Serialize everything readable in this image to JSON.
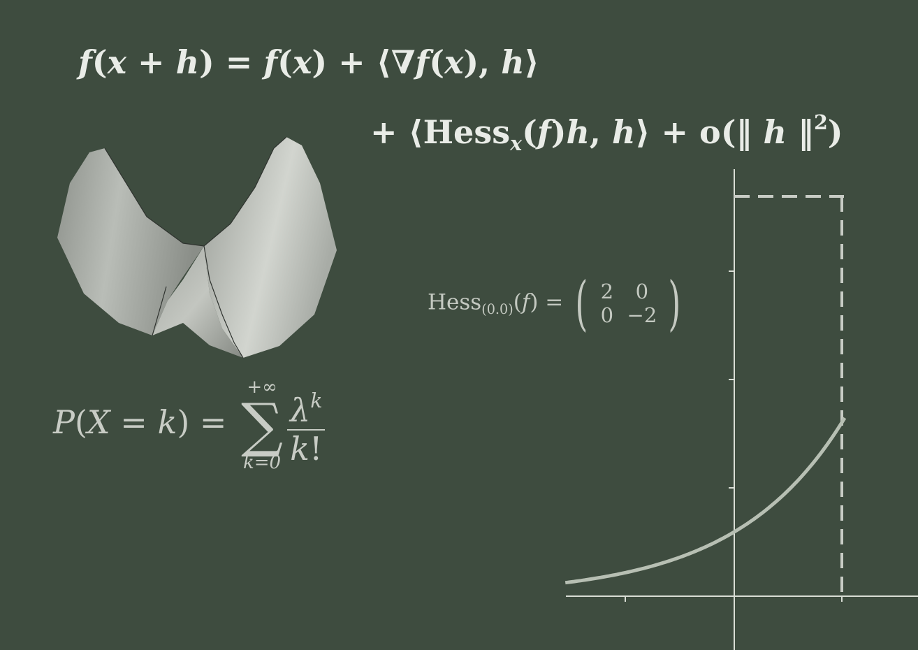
{
  "formulas": {
    "taylor_line1": {
      "f1": "f",
      "p1": "(",
      "x1": "x",
      "plus1": " + ",
      "h1": "h",
      "p2": ") = ",
      "f2": "f",
      "p3": "(",
      "x2": "x",
      "p4": ") + ⟨",
      "nabla": "∇",
      "f3": "f",
      "p5": "(",
      "x3": "x",
      "p6": "), ",
      "h2": "h",
      "p7": "⟩"
    },
    "taylor_line2": {
      "a1": "+ ⟨",
      "hess": "Hess",
      "sub_x": "x",
      "a2": "(",
      "f": "f",
      "a3": ")",
      "h1": "h",
      "a4": ", ",
      "h2": "h",
      "a5": "⟩ + ",
      "o": "o",
      "a6": "(‖ ",
      "h3": "h",
      "a7": " ‖",
      "sup2": "2",
      "a8": ")"
    },
    "hessian": {
      "label": "Hess",
      "sub": "(0.0)",
      "p1": "(",
      "f": "f",
      "p2": ") = ",
      "lparen": "(",
      "rparen": ")",
      "matrix": [
        "2",
        "0",
        "0",
        "−2"
      ]
    },
    "poisson": {
      "P": "P",
      "p1": "(",
      "X": "X",
      "eq": " = ",
      "k": "k",
      "p2": ") = ",
      "upper": "+∞",
      "sigma": "∑",
      "lower": "k=0",
      "lambda": "λ",
      "sup_k": "k",
      "den_k": "k",
      "fact": "!"
    }
  },
  "colors": {
    "background": "#3e4c3f",
    "chalk": "#e9ece7",
    "curve": "#b7bfb3",
    "axis": "#d9ddd5"
  },
  "graph": {
    "type": "exponential-curve",
    "dashed_guides": true
  },
  "illustration": {
    "name": "saddle-surface"
  }
}
